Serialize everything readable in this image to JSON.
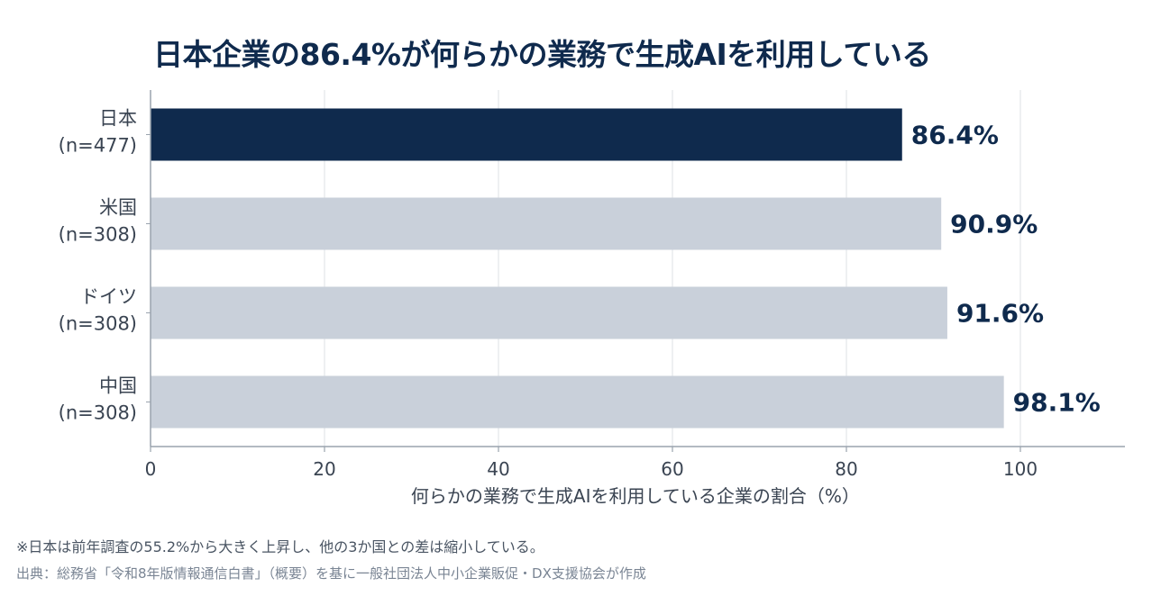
{
  "chart_data": {
    "type": "bar",
    "orientation": "horizontal",
    "title": "日本企業の86.4%が何らかの業務で生成AIを利用している",
    "categories": [
      "日本\n(n=477)",
      "米国\n(n=308)",
      "ドイツ\n(n=308)",
      "中国\n(n=308)"
    ],
    "values": [
      86.4,
      90.9,
      91.6,
      98.1
    ],
    "value_labels": [
      "86.4%",
      "90.9%",
      "91.6%",
      "98.1%"
    ],
    "xlabel": "何らかの業務で生成AIを利用している企業の割合（%）",
    "xlim": [
      0,
      112
    ],
    "xticks": [
      0,
      20,
      40,
      60,
      80,
      100
    ],
    "grid": "vertical",
    "colors": {
      "highlight": "#0f2a4d",
      "default": "#c9d0da",
      "grid": "#e3e6ea",
      "axis": "#9aa3ae",
      "label": "#0f2a4d"
    }
  },
  "notes": {
    "note": "※日本は前年調査の55.2%から大きく上昇し、他の3か国との差は縮小している。",
    "source": "出典：総務省「令和8年版情報通信白書」（概要）を基に一般社団法人中小企業販促・DX支援協会が作成"
  }
}
